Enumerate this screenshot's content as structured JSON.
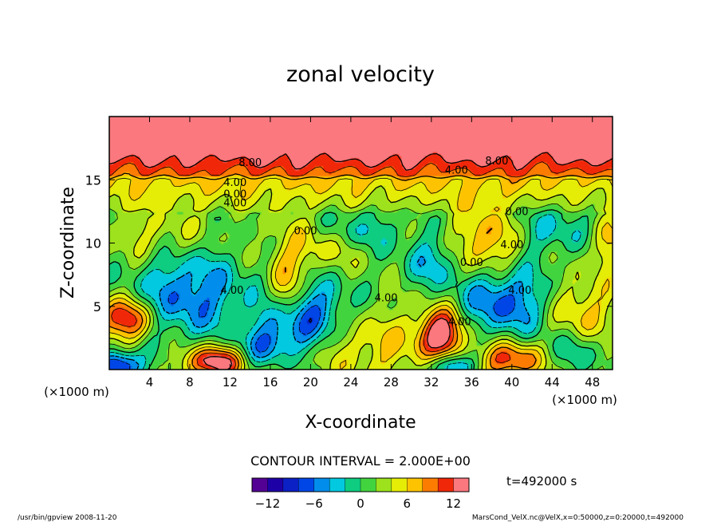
{
  "chart_data": {
    "type": "heatmap",
    "subtype": "filled-contour",
    "title": "zonal velocity",
    "xlabel": "X-coordinate",
    "ylabel": "Z-coordinate",
    "x_unit_label": "(×1000 m)",
    "y_unit_label": "(×1000 m)",
    "xlim": [
      0,
      50
    ],
    "ylim": [
      0,
      20
    ],
    "x_ticks": [
      4,
      8,
      12,
      16,
      20,
      24,
      28,
      32,
      36,
      40,
      44,
      48
    ],
    "y_ticks": [
      5,
      10,
      15
    ],
    "contour_interval_text": "CONTOUR INTERVAL = 2.000E+00",
    "time_text": "t=492000 s",
    "colorbar": {
      "min": -14,
      "max": 14,
      "step": 2,
      "tick_values": [
        -12,
        -6,
        0,
        6,
        12
      ],
      "tick_labels": [
        "−12",
        "−6",
        "0",
        "6",
        "12"
      ]
    },
    "contour_labels": [
      {
        "text": "8.00",
        "x": 14,
        "z": 16.1
      },
      {
        "text": "8.00",
        "x": 38.5,
        "z": 16.2
      },
      {
        "text": "4.00",
        "x": 34.5,
        "z": 15.5
      },
      {
        "text": "4.00",
        "x": 12.5,
        "z": 14.5
      },
      {
        "text": "0.00",
        "x": 12.5,
        "z": 13.6
      },
      {
        "text": "4.00",
        "x": 12.5,
        "z": 12.9
      },
      {
        "text": "0.00",
        "x": 40.5,
        "z": 12.2
      },
      {
        "text": "0.00",
        "x": 19.5,
        "z": 10.7
      },
      {
        "text": "4.00",
        "x": 40.0,
        "z": 9.6
      },
      {
        "text": "0.00",
        "x": 36.0,
        "z": 8.2
      },
      {
        "text": "4.00",
        "x": 12.2,
        "z": 6.0
      },
      {
        "text": "4.00",
        "x": 27.5,
        "z": 5.4
      },
      {
        "text": "4.00",
        "x": 40.8,
        "z": 6.0
      },
      {
        "text": "4.00",
        "x": 34.8,
        "z": 3.5
      }
    ],
    "features": [
      {
        "x": 1.5,
        "z": 4.0,
        "amp": 11,
        "sx": 2.0,
        "sz": 1.2
      },
      {
        "x": 10.5,
        "z": 0.6,
        "amp": 13,
        "sx": 2.0,
        "sz": 0.9
      },
      {
        "x": 33.0,
        "z": 2.8,
        "amp": 13,
        "sx": 1.6,
        "sz": 1.4
      },
      {
        "x": 40.0,
        "z": 0.8,
        "amp": 10,
        "sx": 2.2,
        "sz": 1.0
      },
      {
        "x": 26.0,
        "z": 1.8,
        "amp": 4,
        "sx": 4.0,
        "sz": 2.0
      },
      {
        "x": 17.5,
        "z": 6.0,
        "amp": 6,
        "sx": 1.3,
        "sz": 3.0
      },
      {
        "x": 37.5,
        "z": 10.0,
        "amp": 7,
        "sx": 2.2,
        "sz": 2.0
      },
      {
        "x": 47.0,
        "z": 4.5,
        "amp": 5,
        "sx": 2.0,
        "sz": 2.0
      },
      {
        "x": 21.0,
        "z": 9.5,
        "amp": 4,
        "sx": 2.5,
        "sz": 1.5
      },
      {
        "x": 5.0,
        "z": 10.5,
        "amp": 3,
        "sx": 3.5,
        "sz": 1.5
      },
      {
        "x": 49.5,
        "z": 10.0,
        "amp": 5,
        "sx": 1.2,
        "sz": 1.5
      },
      {
        "x": 8.0,
        "z": 6.0,
        "amp": -8,
        "sx": 4.0,
        "sz": 2.5
      },
      {
        "x": 17.5,
        "z": 3.2,
        "amp": -9,
        "sx": 2.2,
        "sz": 1.6
      },
      {
        "x": 21.0,
        "z": 5.0,
        "amp": -6,
        "sx": 2.5,
        "sz": 2.0
      },
      {
        "x": 39.0,
        "z": 5.5,
        "amp": -9,
        "sx": 3.0,
        "sz": 2.0
      },
      {
        "x": 25.0,
        "z": 11.0,
        "amp": -4,
        "sx": 3.0,
        "sz": 1.2
      },
      {
        "x": 32.0,
        "z": 8.5,
        "amp": -5,
        "sx": 2.0,
        "sz": 1.5
      },
      {
        "x": 44.0,
        "z": 11.0,
        "amp": -4,
        "sx": 3.0,
        "sz": 1.5
      },
      {
        "x": 1.0,
        "z": 0.3,
        "amp": -12,
        "sx": 1.5,
        "sz": 0.8
      },
      {
        "x": 34.0,
        "z": 0.3,
        "amp": -9,
        "sx": 1.5,
        "sz": 0.7
      },
      {
        "x": 15.0,
        "z": 1.5,
        "amp": -4,
        "sx": 2.0,
        "sz": 1.0
      },
      {
        "x": 46.0,
        "z": 1.5,
        "amp": -4,
        "sx": 2.5,
        "sz": 1.2
      }
    ]
  },
  "footer": {
    "left": "/usr/bin/gpview  2008-11-20",
    "right": "MarsCond_VelX.nc@VelX,x=0:50000,z=0:20000,t=492000"
  }
}
